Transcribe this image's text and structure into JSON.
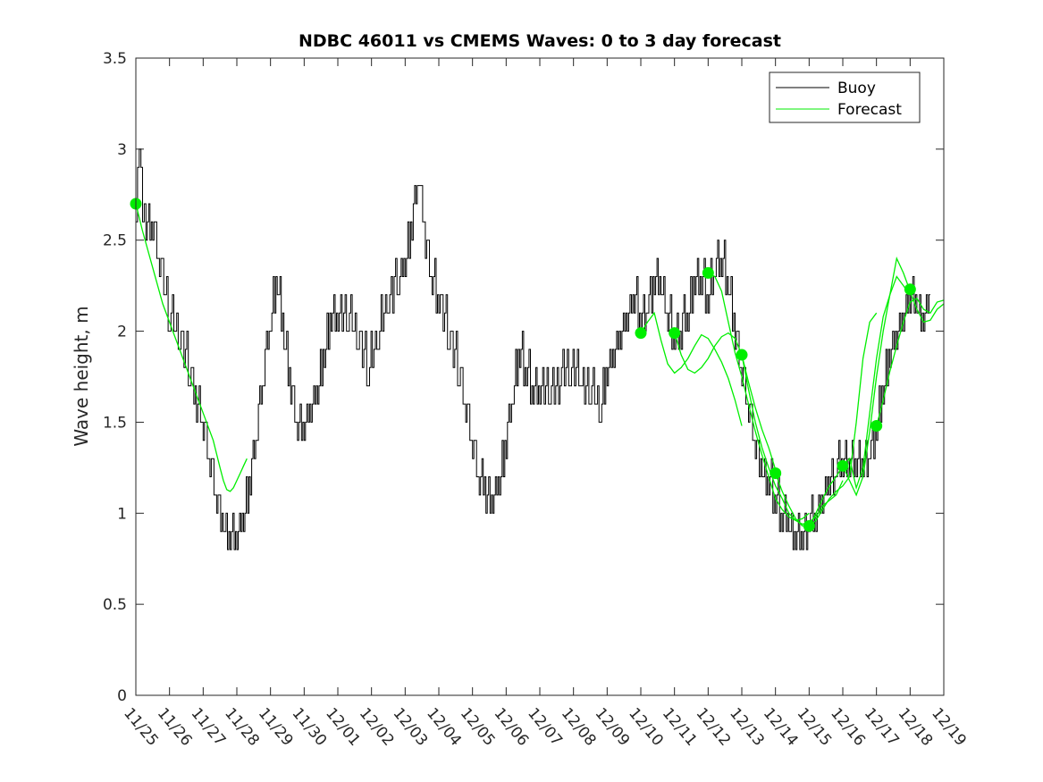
{
  "chart_data": {
    "type": "line",
    "title": "NDBC 46011 vs CMEMS Waves: 0 to 3 day forecast",
    "ylabel": "Wave height, m",
    "xlabel": "",
    "ylim": [
      0,
      3.5
    ],
    "y_ticks": [
      "0",
      "0.5",
      "1",
      "1.5",
      "2",
      "2.5",
      "3",
      "3.5"
    ],
    "x_ticks": [
      "11/25",
      "11/26",
      "11/27",
      "11/28",
      "11/29",
      "11/30",
      "12/01",
      "12/02",
      "12/03",
      "12/04",
      "12/05",
      "12/06",
      "12/07",
      "12/08",
      "12/09",
      "12/10",
      "12/11",
      "12/12",
      "12/13",
      "12/14",
      "12/15",
      "12/16",
      "12/17",
      "12/18",
      "12/19"
    ],
    "x_unit": "days after 11/25",
    "grid": false,
    "legend": {
      "position": "top-right",
      "entries": [
        {
          "name": "Buoy",
          "color": "#000000"
        },
        {
          "name": "Forecast",
          "color": "#00ee00"
        }
      ]
    },
    "series": [
      {
        "name": "Buoy",
        "color": "#000000",
        "points": [
          [
            0.0,
            2.7
          ],
          [
            0.1,
            3.1
          ],
          [
            0.2,
            2.7
          ],
          [
            0.3,
            2.6
          ],
          [
            0.5,
            2.6
          ],
          [
            0.7,
            2.4
          ],
          [
            1.0,
            2.1
          ],
          [
            1.3,
            2.0
          ],
          [
            1.6,
            1.8
          ],
          [
            1.8,
            1.65
          ],
          [
            2.0,
            1.5
          ],
          [
            2.2,
            1.3
          ],
          [
            2.4,
            1.1
          ],
          [
            2.6,
            0.95
          ],
          [
            2.8,
            0.9
          ],
          [
            3.0,
            0.9
          ],
          [
            3.2,
            1.0
          ],
          [
            3.4,
            1.2
          ],
          [
            3.6,
            1.5
          ],
          [
            3.8,
            1.8
          ],
          [
            4.0,
            2.1
          ],
          [
            4.2,
            2.3
          ],
          [
            4.4,
            2.0
          ],
          [
            4.6,
            1.7
          ],
          [
            4.8,
            1.5
          ],
          [
            5.0,
            1.5
          ],
          [
            5.2,
            1.6
          ],
          [
            5.4,
            1.7
          ],
          [
            5.6,
            1.9
          ],
          [
            5.8,
            2.1
          ],
          [
            6.0,
            2.1
          ],
          [
            6.3,
            2.1
          ],
          [
            6.6,
            2.0
          ],
          [
            6.9,
            1.8
          ],
          [
            7.2,
            2.0
          ],
          [
            7.5,
            2.2
          ],
          [
            7.8,
            2.3
          ],
          [
            8.0,
            2.4
          ],
          [
            8.2,
            2.6
          ],
          [
            8.4,
            2.9
          ],
          [
            8.6,
            2.5
          ],
          [
            8.8,
            2.3
          ],
          [
            9.0,
            2.2
          ],
          [
            9.3,
            2.0
          ],
          [
            9.6,
            1.8
          ],
          [
            9.8,
            1.6
          ],
          [
            10.0,
            1.4
          ],
          [
            10.2,
            1.2
          ],
          [
            10.4,
            1.15
          ],
          [
            10.6,
            1.1
          ],
          [
            10.8,
            1.2
          ],
          [
            11.0,
            1.4
          ],
          [
            11.2,
            1.7
          ],
          [
            11.4,
            1.9
          ],
          [
            11.6,
            1.8
          ],
          [
            11.8,
            1.7
          ],
          [
            12.0,
            1.7
          ],
          [
            12.3,
            1.7
          ],
          [
            12.6,
            1.75
          ],
          [
            12.9,
            1.8
          ],
          [
            13.2,
            1.75
          ],
          [
            13.5,
            1.7
          ],
          [
            13.8,
            1.6
          ],
          [
            14.0,
            1.8
          ],
          [
            14.2,
            1.9
          ],
          [
            14.4,
            2.0
          ],
          [
            14.6,
            2.1
          ],
          [
            14.8,
            2.2
          ],
          [
            15.0,
            2.1
          ],
          [
            15.2,
            2.15
          ],
          [
            15.4,
            2.3
          ],
          [
            15.6,
            2.25
          ],
          [
            15.8,
            2.1
          ],
          [
            16.0,
            2.0
          ],
          [
            16.2,
            2.05
          ],
          [
            16.4,
            2.1
          ],
          [
            16.6,
            2.3
          ],
          [
            16.8,
            2.3
          ],
          [
            17.0,
            2.2
          ],
          [
            17.2,
            2.35
          ],
          [
            17.4,
            2.4
          ],
          [
            17.6,
            2.3
          ],
          [
            17.8,
            2.0
          ],
          [
            18.0,
            1.8
          ],
          [
            18.2,
            1.6
          ],
          [
            18.4,
            1.4
          ],
          [
            18.6,
            1.25
          ],
          [
            18.8,
            1.2
          ],
          [
            19.0,
            1.1
          ],
          [
            19.2,
            1.0
          ],
          [
            19.4,
            0.95
          ],
          [
            19.6,
            0.9
          ],
          [
            19.8,
            0.9
          ],
          [
            20.0,
            0.95
          ],
          [
            20.2,
            1.0
          ],
          [
            20.4,
            1.1
          ],
          [
            20.6,
            1.2
          ],
          [
            20.8,
            1.25
          ],
          [
            21.0,
            1.3
          ],
          [
            21.2,
            1.25
          ],
          [
            21.4,
            1.3
          ],
          [
            21.6,
            1.3
          ],
          [
            21.8,
            1.35
          ],
          [
            22.0,
            1.5
          ],
          [
            22.2,
            1.7
          ],
          [
            22.4,
            1.9
          ],
          [
            22.6,
            2.0
          ],
          [
            22.8,
            2.1
          ],
          [
            23.0,
            2.2
          ],
          [
            23.2,
            2.15
          ],
          [
            23.4,
            2.1
          ],
          [
            23.6,
            2.2
          ]
        ]
      },
      {
        "name": "Forecast",
        "color": "#00ee00",
        "points": [
          [
            0.0,
            2.7
          ],
          [
            0.2,
            2.55
          ],
          [
            0.5,
            2.35
          ],
          [
            0.8,
            2.15
          ],
          [
            1.1,
            2.0
          ],
          [
            1.4,
            1.85
          ],
          [
            1.7,
            1.7
          ],
          [
            2.0,
            1.55
          ],
          [
            2.3,
            1.4
          ],
          [
            2.5,
            1.25
          ],
          [
            2.6,
            1.18
          ],
          [
            2.7,
            1.13
          ],
          [
            2.8,
            1.12
          ],
          [
            2.9,
            1.14
          ],
          [
            3.0,
            1.18
          ],
          [
            3.1,
            1.22
          ],
          [
            3.2,
            1.26
          ],
          [
            3.3,
            1.3
          ]
        ]
      },
      {
        "name": "Forecast",
        "color": "#00ee00",
        "points": [
          [
            15.0,
            1.99
          ],
          [
            15.2,
            2.05
          ],
          [
            15.4,
            2.1
          ],
          [
            15.6,
            1.95
          ],
          [
            15.8,
            1.82
          ],
          [
            16.0,
            1.77
          ],
          [
            16.2,
            1.8
          ],
          [
            16.4,
            1.85
          ],
          [
            16.6,
            1.92
          ],
          [
            16.8,
            1.98
          ],
          [
            17.0,
            1.96
          ],
          [
            17.2,
            1.9
          ],
          [
            17.4,
            1.83
          ],
          [
            17.6,
            1.74
          ],
          [
            17.8,
            1.62
          ],
          [
            18.0,
            1.48
          ]
        ]
      },
      {
        "name": "Forecast",
        "color": "#00ee00",
        "points": [
          [
            16.0,
            1.99
          ],
          [
            16.2,
            1.87
          ],
          [
            16.4,
            1.79
          ],
          [
            16.6,
            1.77
          ],
          [
            16.8,
            1.8
          ],
          [
            17.0,
            1.85
          ],
          [
            17.2,
            1.92
          ],
          [
            17.4,
            1.97
          ],
          [
            17.6,
            1.99
          ],
          [
            17.8,
            1.96
          ],
          [
            18.0,
            1.87
          ],
          [
            18.2,
            1.72
          ],
          [
            18.4,
            1.58
          ],
          [
            18.6,
            1.46
          ],
          [
            18.8,
            1.36
          ],
          [
            19.0,
            1.24
          ]
        ]
      },
      {
        "name": "Forecast",
        "color": "#00ee00",
        "points": [
          [
            17.0,
            2.32
          ],
          [
            17.2,
            2.3
          ],
          [
            17.4,
            2.22
          ],
          [
            17.6,
            2.05
          ],
          [
            17.8,
            1.88
          ],
          [
            18.0,
            1.75
          ],
          [
            18.2,
            1.6
          ],
          [
            18.4,
            1.45
          ],
          [
            18.6,
            1.32
          ],
          [
            18.8,
            1.2
          ],
          [
            19.0,
            1.08
          ],
          [
            19.2,
            1.02
          ],
          [
            19.4,
            0.98
          ],
          [
            19.6,
            0.96
          ],
          [
            19.8,
            0.97
          ],
          [
            20.0,
            1.0
          ]
        ]
      },
      {
        "name": "Forecast",
        "color": "#00ee00",
        "points": [
          [
            18.0,
            1.87
          ],
          [
            18.2,
            1.68
          ],
          [
            18.4,
            1.5
          ],
          [
            18.6,
            1.36
          ],
          [
            18.8,
            1.25
          ],
          [
            19.0,
            1.15
          ],
          [
            19.2,
            1.08
          ],
          [
            19.4,
            1.0
          ],
          [
            19.6,
            0.96
          ],
          [
            19.8,
            0.94
          ],
          [
            20.0,
            0.95
          ],
          [
            20.2,
            0.98
          ],
          [
            20.4,
            1.04
          ],
          [
            20.6,
            1.07
          ],
          [
            20.8,
            1.1
          ],
          [
            21.0,
            1.18
          ]
        ]
      },
      {
        "name": "Forecast",
        "color": "#00ee00",
        "points": [
          [
            19.0,
            1.22
          ],
          [
            19.2,
            1.12
          ],
          [
            19.4,
            1.04
          ],
          [
            19.6,
            0.97
          ],
          [
            19.8,
            0.93
          ],
          [
            20.0,
            0.93
          ],
          [
            20.2,
            0.96
          ],
          [
            20.4,
            1.02
          ],
          [
            20.6,
            1.08
          ],
          [
            20.8,
            1.12
          ],
          [
            21.0,
            1.15
          ],
          [
            21.2,
            1.2
          ],
          [
            21.4,
            1.5
          ],
          [
            21.6,
            1.85
          ],
          [
            21.8,
            2.05
          ],
          [
            22.0,
            2.1
          ]
        ]
      },
      {
        "name": "Forecast",
        "color": "#00ee00",
        "points": [
          [
            20.0,
            0.93
          ],
          [
            20.2,
            1.0
          ],
          [
            20.4,
            1.08
          ],
          [
            20.6,
            1.15
          ],
          [
            20.8,
            1.2
          ],
          [
            21.0,
            1.26
          ],
          [
            21.2,
            1.3
          ],
          [
            21.4,
            1.14
          ],
          [
            21.6,
            1.25
          ],
          [
            21.8,
            1.55
          ],
          [
            22.0,
            1.85
          ],
          [
            22.2,
            2.08
          ],
          [
            22.4,
            2.2
          ],
          [
            22.6,
            2.3
          ],
          [
            22.8,
            2.25
          ],
          [
            23.0,
            2.2
          ]
        ]
      },
      {
        "name": "Forecast",
        "color": "#00ee00",
        "points": [
          [
            21.0,
            1.26
          ],
          [
            21.2,
            1.18
          ],
          [
            21.4,
            1.1
          ],
          [
            21.6,
            1.2
          ],
          [
            21.8,
            1.45
          ],
          [
            22.0,
            1.75
          ],
          [
            22.2,
            2.0
          ],
          [
            22.4,
            2.2
          ],
          [
            22.6,
            2.4
          ],
          [
            22.8,
            2.32
          ],
          [
            23.0,
            2.22
          ],
          [
            23.2,
            2.12
          ],
          [
            23.4,
            2.05
          ],
          [
            23.6,
            2.06
          ],
          [
            23.8,
            2.12
          ],
          [
            24.0,
            2.15
          ]
        ]
      },
      {
        "name": "Forecast",
        "color": "#00ee00",
        "points": [
          [
            22.0,
            1.48
          ],
          [
            22.2,
            1.62
          ],
          [
            22.4,
            1.78
          ],
          [
            22.6,
            1.92
          ],
          [
            22.8,
            2.05
          ],
          [
            23.0,
            2.16
          ],
          [
            23.2,
            2.18
          ],
          [
            23.4,
            2.12
          ],
          [
            23.6,
            2.1
          ],
          [
            23.8,
            2.16
          ],
          [
            24.0,
            2.17
          ]
        ]
      }
    ],
    "markers": {
      "name": "Forecast",
      "color": "#00ee00",
      "points": [
        [
          0.0,
          2.7
        ],
        [
          15.0,
          1.99
        ],
        [
          16.0,
          1.99
        ],
        [
          17.0,
          2.32
        ],
        [
          18.0,
          1.87
        ],
        [
          19.0,
          1.22
        ],
        [
          20.0,
          0.93
        ],
        [
          21.0,
          1.26
        ],
        [
          22.0,
          1.48
        ],
        [
          23.0,
          2.23
        ]
      ]
    }
  }
}
